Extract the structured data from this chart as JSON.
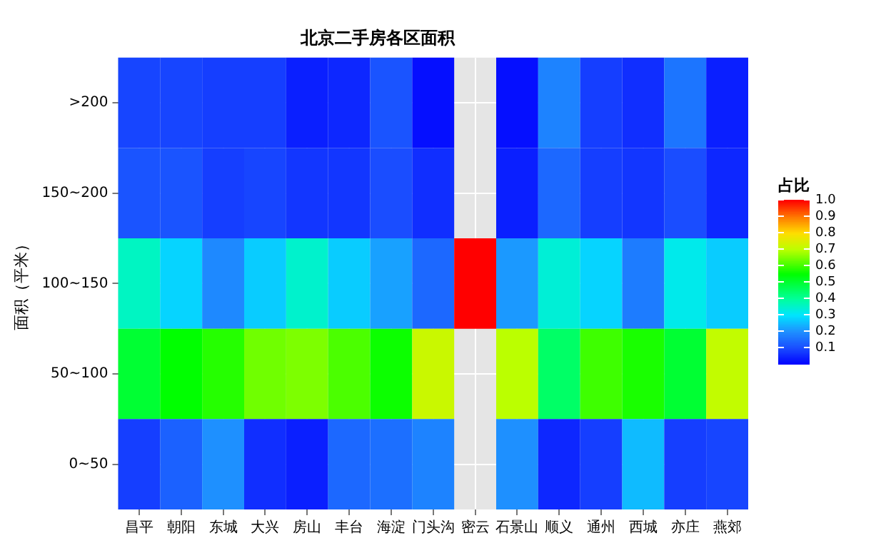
{
  "chart_data": {
    "type": "heatmap",
    "title": "北京二手房各区面积",
    "ylabel": "面积（平米）",
    "clabel": "占比",
    "categories": [
      "昌平",
      "朝阳",
      "东城",
      "大兴",
      "房山",
      "丰台",
      "海淀",
      "门头沟",
      "密云",
      "石景山",
      "顺义",
      "通州",
      "西城",
      "亦庄",
      "燕郊"
    ],
    "y_categories": [
      ">200",
      "150~200",
      "100~150",
      "50~100",
      "0~50"
    ],
    "cells": [
      [
        0.09,
        0.09,
        0.08,
        0.08,
        0.04,
        0.05,
        0.11,
        0.02,
        null,
        0.02,
        0.18,
        0.08,
        0.06,
        0.16,
        0.04
      ],
      [
        0.11,
        0.11,
        0.08,
        0.09,
        0.07,
        0.07,
        0.1,
        0.06,
        null,
        0.04,
        0.14,
        0.08,
        0.07,
        0.1,
        0.05
      ],
      [
        0.36,
        0.28,
        0.19,
        0.27,
        0.35,
        0.27,
        0.22,
        0.14,
        1.0,
        0.21,
        0.34,
        0.28,
        0.17,
        0.32,
        0.27
      ],
      [
        0.5,
        0.55,
        0.58,
        0.64,
        0.65,
        0.61,
        0.56,
        0.72,
        null,
        0.7,
        0.45,
        0.6,
        0.57,
        0.5,
        0.71
      ],
      [
        0.08,
        0.13,
        0.2,
        0.06,
        0.04,
        0.14,
        0.15,
        0.18,
        null,
        0.2,
        0.05,
        0.08,
        0.25,
        0.08,
        0.09
      ]
    ],
    "clim": [
      0,
      1
    ],
    "cticks": [
      0.1,
      0.2,
      0.3,
      0.4,
      0.5,
      0.6,
      0.7,
      0.8,
      0.9,
      {
        "value": 1,
        "label": "1.0"
      }
    ],
    "grid": true
  }
}
